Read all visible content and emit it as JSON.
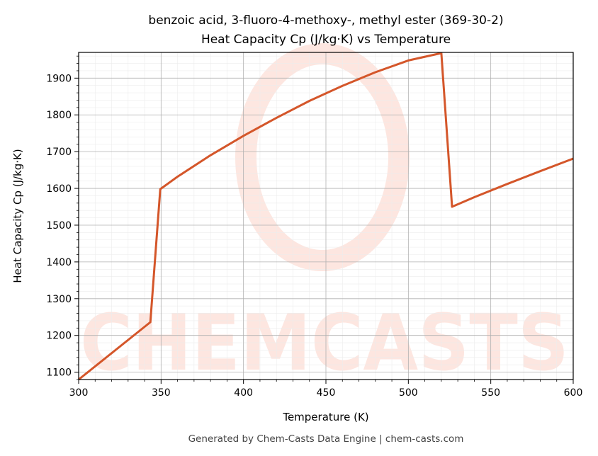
{
  "chart_data": {
    "type": "line",
    "title": "benzoic acid, 3-fluoro-4-methoxy-, methyl ester (369-30-2)",
    "subtitle": "Heat Capacity Cp (J/kg·K) vs Temperature",
    "xlabel": "Temperature (K)",
    "ylabel": "Heat Capacity Cp (J/kg·K)",
    "xlim": [
      300,
      600
    ],
    "ylim": [
      1080,
      1970
    ],
    "xticks": [
      300,
      350,
      400,
      450,
      500,
      550,
      600
    ],
    "yticks": [
      1100,
      1200,
      1300,
      1400,
      1500,
      1600,
      1700,
      1800,
      1900
    ],
    "grid": true,
    "series": [
      {
        "color": "#d4562a",
        "x": [
          300,
          343.5,
          349.5,
          360,
          380,
          400,
          420,
          440,
          460,
          480,
          500,
          520,
          526.5,
          540,
          560,
          580,
          600
        ],
        "y": [
          1080,
          1236,
          1598,
          1632,
          1690,
          1743,
          1792,
          1838,
          1879,
          1916,
          1948,
          1968,
          1550,
          1576,
          1612,
          1647,
          1681
        ]
      }
    ]
  },
  "watermark": "CHEMCASTS",
  "footer": "Generated by Chem-Casts Data Engine | chem-casts.com"
}
